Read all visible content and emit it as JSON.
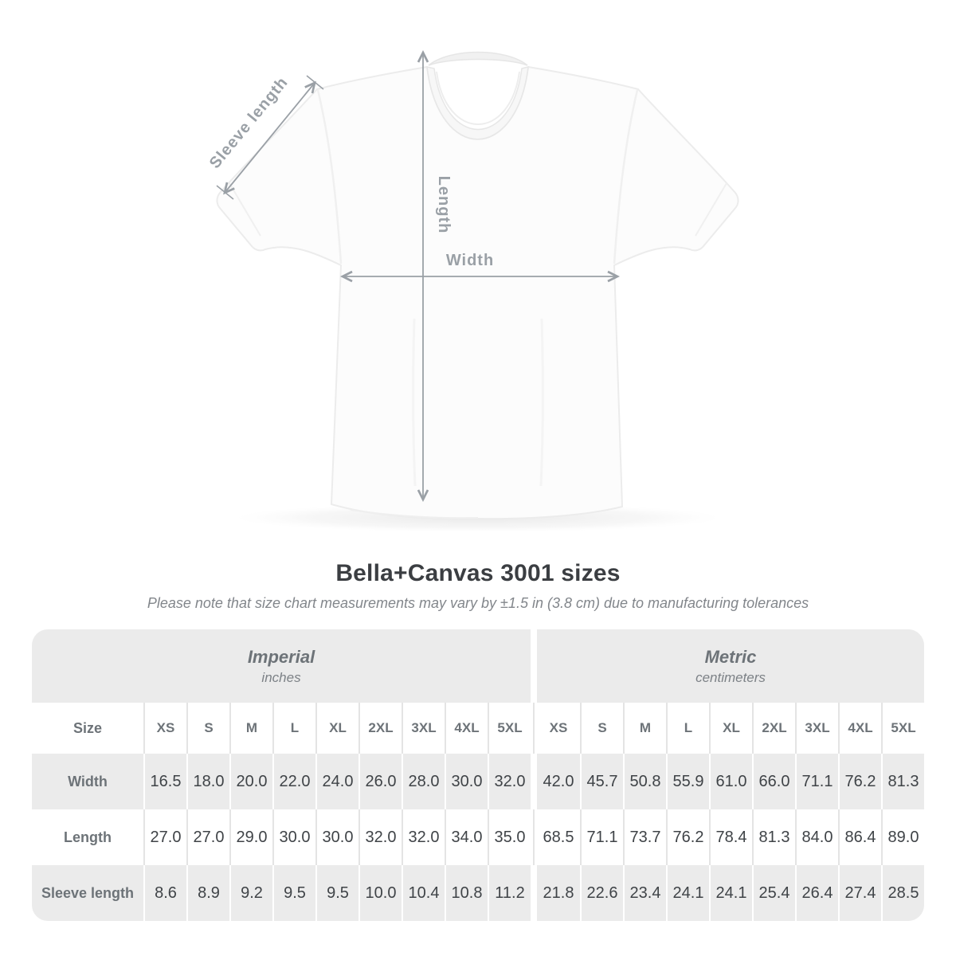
{
  "diagram": {
    "labels": {
      "sleeve_length": "Sleeve length",
      "length": "Length",
      "width": "Width"
    },
    "annotation_color": "#9aa0a6"
  },
  "title": "Bella+Canvas 3001 sizes",
  "subtitle": "Please note that size chart measurements may vary by ±1.5 in (3.8 cm) due to manufacturing tolerances",
  "table": {
    "unit_groups": [
      {
        "label": "Imperial",
        "sublabel": "inches"
      },
      {
        "label": "Metric",
        "sublabel": "centimeters"
      }
    ],
    "size_row_label": "Size",
    "sizes": [
      "XS",
      "S",
      "M",
      "L",
      "XL",
      "2XL",
      "3XL",
      "4XL",
      "5XL"
    ],
    "rows": [
      {
        "label": "Width",
        "imperial": [
          "16.5",
          "18.0",
          "20.0",
          "22.0",
          "24.0",
          "26.0",
          "28.0",
          "30.0",
          "32.0"
        ],
        "metric": [
          "42.0",
          "45.7",
          "50.8",
          "55.9",
          "61.0",
          "66.0",
          "71.1",
          "76.2",
          "81.3"
        ]
      },
      {
        "label": "Length",
        "imperial": [
          "27.0",
          "27.0",
          "29.0",
          "30.0",
          "30.0",
          "32.0",
          "32.0",
          "34.0",
          "35.0"
        ],
        "metric": [
          "68.5",
          "71.1",
          "73.7",
          "76.2",
          "78.4",
          "81.3",
          "84.0",
          "86.4",
          "89.0"
        ]
      },
      {
        "label": "Sleeve length",
        "imperial": [
          "8.6",
          "8.9",
          "9.2",
          "9.5",
          "9.5",
          "10.0",
          "10.4",
          "10.8",
          "11.2"
        ],
        "metric": [
          "21.8",
          "22.6",
          "23.4",
          "24.1",
          "24.1",
          "25.4",
          "26.4",
          "27.4",
          "28.5"
        ]
      }
    ]
  },
  "chart_data": {
    "type": "table",
    "title": "Bella+Canvas 3001 sizes",
    "columns": [
      "XS",
      "S",
      "M",
      "L",
      "XL",
      "2XL",
      "3XL",
      "4XL",
      "5XL"
    ],
    "series": [
      {
        "name": "Width (in)",
        "values": [
          16.5,
          18.0,
          20.0,
          22.0,
          24.0,
          26.0,
          28.0,
          30.0,
          32.0
        ]
      },
      {
        "name": "Length (in)",
        "values": [
          27.0,
          27.0,
          29.0,
          30.0,
          30.0,
          32.0,
          32.0,
          34.0,
          35.0
        ]
      },
      {
        "name": "Sleeve length (in)",
        "values": [
          8.6,
          8.9,
          9.2,
          9.5,
          9.5,
          10.0,
          10.4,
          10.8,
          11.2
        ]
      },
      {
        "name": "Width (cm)",
        "values": [
          42.0,
          45.7,
          50.8,
          55.9,
          61.0,
          66.0,
          71.1,
          76.2,
          81.3
        ]
      },
      {
        "name": "Length (cm)",
        "values": [
          68.5,
          71.1,
          73.7,
          76.2,
          78.4,
          81.3,
          84.0,
          86.4,
          89.0
        ]
      },
      {
        "name": "Sleeve length (cm)",
        "values": [
          21.8,
          22.6,
          23.4,
          24.1,
          24.1,
          25.4,
          26.4,
          27.4,
          28.5
        ]
      }
    ]
  },
  "colors": {
    "annotation": "#9aa0a6",
    "title_text": "#3b3e42",
    "subtitle_text": "#82868b",
    "table_header_text": "#6d7378",
    "table_value_text": "#3f4347",
    "row_gray": "#ebebeb",
    "background": "#ffffff"
  }
}
